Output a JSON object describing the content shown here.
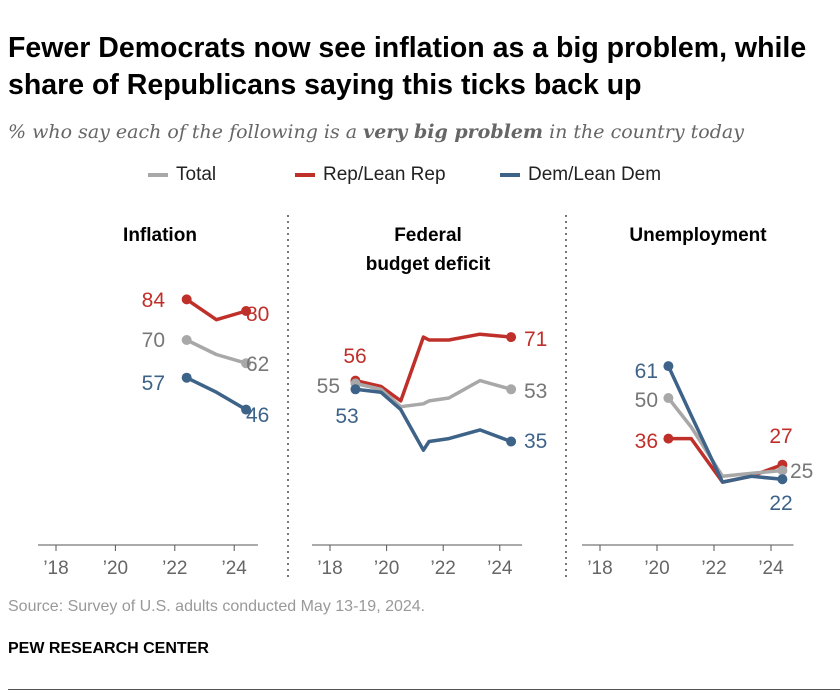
{
  "title": "Fewer Democrats now see inflation as a big problem, while share of Republicans saying this ticks back up",
  "subtitle_pre": "% who say each of the following is a ",
  "subtitle_bold": "very big problem",
  "subtitle_post": " in the country today",
  "source": "Source: Survey of U.S. adults conducted May 13-19, 2024.",
  "brand": "PEW RESEARCH CENTER",
  "colors": {
    "Total": "#a8a8a8",
    "Rep/Lean Rep": "#c0302a",
    "Dem/Lean Dem": "#3e6388"
  },
  "legend": [
    "Total",
    "Rep/Lean Rep",
    "Dem/Lean Dem"
  ],
  "chart_data": [
    {
      "type": "line",
      "title": "Inflation",
      "xticks": [
        "’18",
        "’20",
        "’22",
        "’24"
      ],
      "xlim": [
        2018,
        2025
      ],
      "ylim": [
        0,
        100
      ],
      "grid": false,
      "x": [
        2022.4,
        2023.4,
        2024.4
      ],
      "series": [
        {
          "name": "Rep/Lean Rep",
          "values": [
            84,
            77,
            80
          ]
        },
        {
          "name": "Total",
          "values": [
            70,
            65,
            62
          ]
        },
        {
          "name": "Dem/Lean Dem",
          "values": [
            57,
            52,
            46
          ]
        }
      ]
    },
    {
      "type": "line",
      "title": "Federal budget deficit",
      "xticks": [
        "’18",
        "’20",
        "’22",
        "’24"
      ],
      "xlim": [
        2018,
        2025
      ],
      "ylim": [
        0,
        100
      ],
      "grid": false,
      "x": [
        2018.9,
        2019.8,
        2020.5,
        2021.3,
        2021.5,
        2022.2,
        2023.3,
        2024.4
      ],
      "series": [
        {
          "name": "Rep/Lean Rep",
          "values": [
            56,
            54,
            49,
            71,
            70,
            70,
            72,
            71
          ]
        },
        {
          "name": "Total",
          "values": [
            55,
            53,
            47,
            48,
            49,
            50,
            56,
            53
          ]
        },
        {
          "name": "Dem/Lean Dem",
          "values": [
            53,
            52,
            46,
            32,
            35,
            36,
            39,
            35
          ]
        }
      ]
    },
    {
      "type": "line",
      "title": "Unemployment",
      "xticks": [
        "’18",
        "’20",
        "’22",
        "’24"
      ],
      "xlim": [
        2018,
        2025
      ],
      "ylim": [
        0,
        100
      ],
      "grid": false,
      "x": [
        2020.4,
        2021.2,
        2022.3,
        2023.3,
        2024.4
      ],
      "series": [
        {
          "name": "Rep/Lean Rep",
          "values": [
            36,
            36,
            21,
            23,
            27
          ]
        },
        {
          "name": "Total",
          "values": [
            50,
            40,
            23,
            24,
            25
          ]
        },
        {
          "name": "Dem/Lean Dem",
          "values": [
            61,
            44,
            21,
            23,
            22
          ]
        }
      ]
    }
  ]
}
